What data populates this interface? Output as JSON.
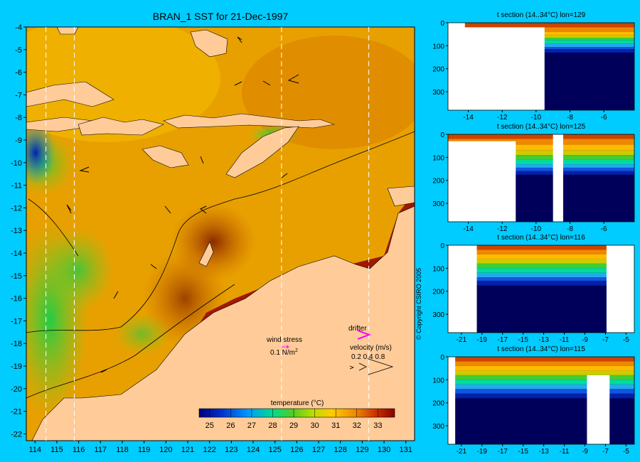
{
  "chart_data": [
    {
      "type": "heatmap",
      "title": "BRAN_1 SST for 21-Dec-1997",
      "x_ticks": [
        "114",
        "115",
        "116",
        "117",
        "118",
        "119",
        "120",
        "121",
        "122",
        "123",
        "124",
        "125",
        "126",
        "127",
        "128",
        "129",
        "130",
        "131"
      ],
      "y_ticks": [
        "-4",
        "-5",
        "-6",
        "-7",
        "-8",
        "-9",
        "-10",
        "-11",
        "-12",
        "-13",
        "-14",
        "-15",
        "-16",
        "-17",
        "-18",
        "-19",
        "-20",
        "-21",
        "-22"
      ],
      "xlim": [
        113.6,
        131.4
      ],
      "ylim": [
        -22.3,
        -4
      ],
      "section_lons": [
        114.5,
        115.8,
        125.3,
        129.3
      ],
      "colorbar": {
        "label": "temperature (°C)",
        "ticks": [
          "25",
          "26",
          "27",
          "28",
          "29",
          "30",
          "31",
          "32",
          "33"
        ],
        "range": [
          24.5,
          33.8
        ],
        "colors": [
          "#00007a",
          "#0033cc",
          "#0099ff",
          "#00dd88",
          "#44cc22",
          "#aadd00",
          "#ffcc00",
          "#ee8800",
          "#cc3300",
          "#880000"
        ]
      },
      "annotations": {
        "wind_label": "wind stress",
        "wind_value": "0.1 N/m",
        "wind_sup": "2",
        "drifter_label": "drifter",
        "velocity_label": "velocity (m/s)",
        "velocity_values": "0.2 0.4 0.8"
      },
      "colors": {
        "background": "#00ccff",
        "land": "#ffcc99",
        "drifter": "#ff00ff"
      }
    },
    {
      "type": "heatmap",
      "title": "t section (14..34°C) lon=129",
      "x_ticks": [
        "-14",
        "-12",
        "-10",
        "-8",
        "-6"
      ],
      "xlim": [
        -15.2,
        -4.2
      ],
      "y_ticks": [
        "0",
        "100",
        "200",
        "300"
      ],
      "ylim": [
        0,
        380
      ],
      "land_bounds": [
        [
          -15.2,
          -14.2,
          0,
          20
        ],
        [
          -15.2,
          -9.5,
          20,
          380
        ]
      ],
      "layers": [
        20,
        40,
        55,
        65,
        75,
        90,
        105,
        115,
        130
      ]
    },
    {
      "type": "heatmap",
      "title": "t section (14..34°C) lon=125",
      "x_ticks": [
        "-14",
        "-12",
        "-10",
        "-8",
        "-6"
      ],
      "xlim": [
        -15.2,
        -4.2
      ],
      "y_ticks": [
        "0",
        "100",
        "200",
        "300"
      ],
      "ylim": [
        0,
        380
      ],
      "land_bounds": [
        [
          -15.2,
          -11.2,
          30,
          380
        ],
        [
          -9,
          -8.4,
          0,
          380
        ]
      ],
      "layers": [
        20,
        45,
        70,
        90,
        110,
        130,
        145,
        160,
        175
      ]
    },
    {
      "type": "heatmap",
      "title": "t section (14..34°C) lon=116",
      "x_ticks": [
        "-21",
        "-19",
        "-17",
        "-15",
        "-13",
        "-11",
        "-9",
        "-7",
        "-5"
      ],
      "xlim": [
        -22.3,
        -4.2
      ],
      "y_ticks": [
        "0",
        "100",
        "200",
        "300"
      ],
      "ylim": [
        0,
        380
      ],
      "land_bounds": [
        [
          -22.3,
          -19.5,
          0,
          380
        ],
        [
          -6.9,
          -4.2,
          0,
          380
        ]
      ],
      "layers": [
        20,
        40,
        60,
        80,
        100,
        120,
        140,
        155,
        175
      ]
    },
    {
      "type": "heatmap",
      "title": "t section (14..34°C) lon=115",
      "x_ticks": [
        "-21",
        "-19",
        "-17",
        "-15",
        "-13",
        "-11",
        "-9",
        "-7",
        "-5"
      ],
      "xlim": [
        -22.3,
        -4.2
      ],
      "y_ticks": [
        "0",
        "100",
        "200",
        "300"
      ],
      "ylim": [
        0,
        380
      ],
      "land_bounds": [
        [
          -22.3,
          -21.6,
          0,
          380
        ],
        [
          -8.8,
          -6.6,
          80,
          380
        ]
      ],
      "layers": [
        20,
        40,
        60,
        80,
        100,
        120,
        140,
        160,
        180
      ]
    }
  ],
  "copyright": "© Copyright CSIRO 2005"
}
